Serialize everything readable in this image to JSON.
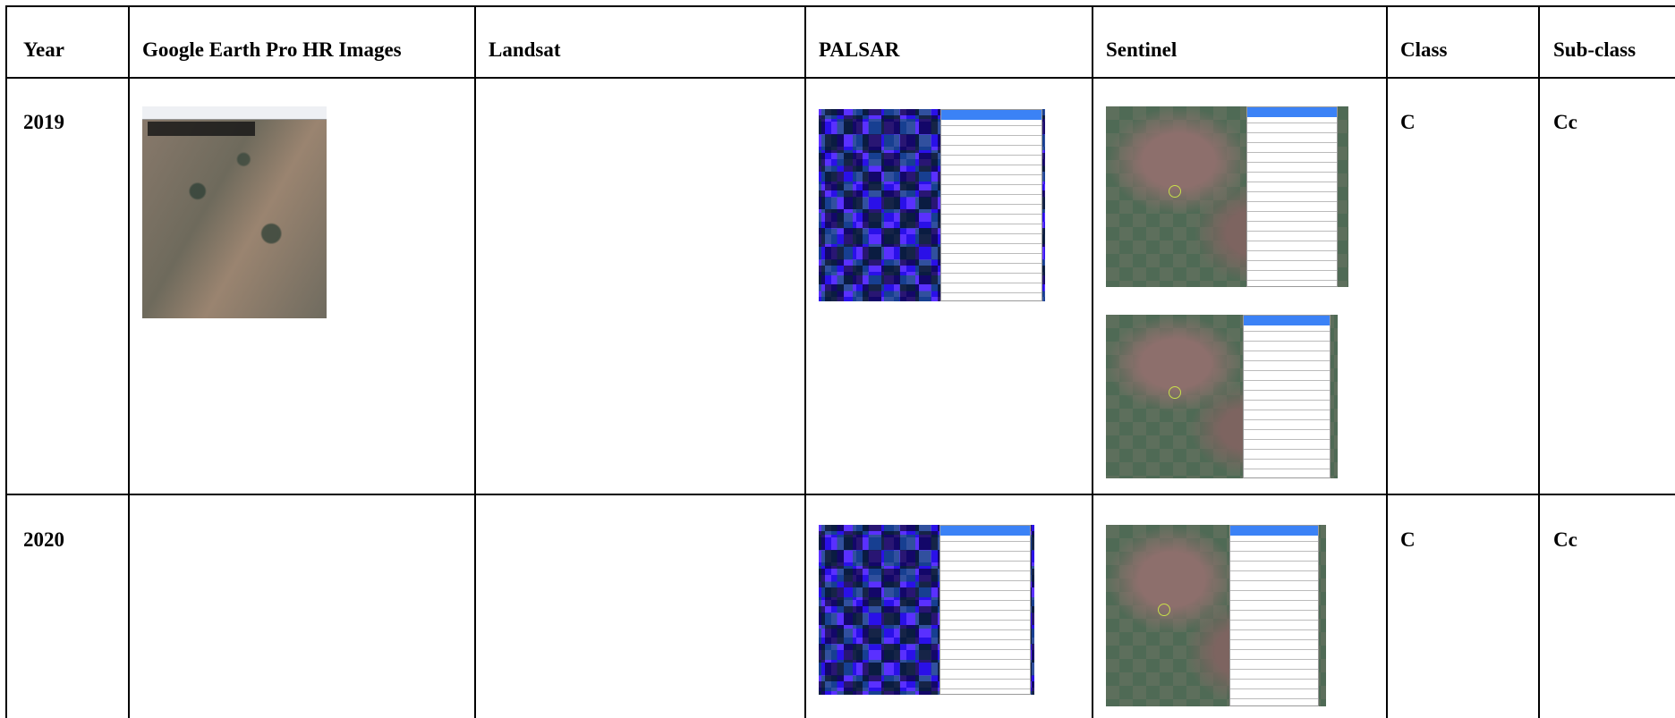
{
  "table": {
    "header": [
      "Year",
      "Google Earth Pro HR Images",
      "Landsat",
      "PALSAR",
      "Sentinel",
      "Class",
      "Sub-class"
    ],
    "rows": [
      {
        "year": "2019",
        "class": "C",
        "sub_class": "Cc"
      },
      {
        "year": "2020",
        "class": "C",
        "sub_class": "Cc"
      }
    ]
  }
}
